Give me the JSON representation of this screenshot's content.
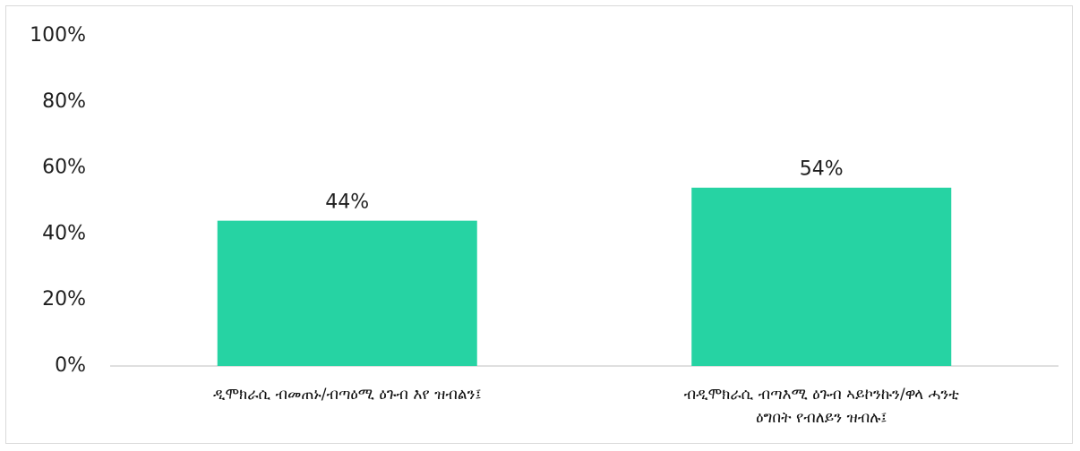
{
  "chart_data": {
    "type": "bar",
    "categories": [
      [
        "ዲሞክራሲ ብመጠኑ/ብጣዕሚ ዕጉብ እየ ዝብልን፤"
      ],
      [
        "ብዲሞክራሲ ብጣእሚ ዕጉብ ኣይኮንኩን/ዋላ ሓንቲ",
        "ዕግበት የብለይን  ዝብሉ፤"
      ]
    ],
    "values": [
      44,
      54
    ],
    "data_labels": [
      "44%",
      "54%"
    ],
    "ylim": [
      0,
      100
    ],
    "yticks": [
      0,
      20,
      40,
      60,
      80,
      100
    ],
    "ytick_labels": [
      "0%",
      "20%",
      "40%",
      "60%",
      "80%",
      "100%"
    ],
    "bar_color": "#26d3a3",
    "axis_color": "#bfbfbf",
    "grid": false,
    "legend": "none"
  }
}
